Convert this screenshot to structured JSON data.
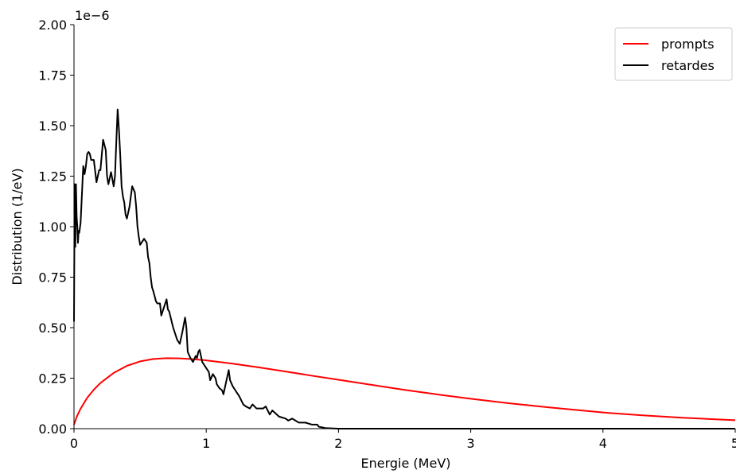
{
  "chart_data": {
    "type": "line",
    "xlabel": "Energie (MeV)",
    "ylabel": "Distribution (1/eV)",
    "y_offset_label": "1e−6",
    "xlim": [
      0,
      5
    ],
    "ylim": [
      0,
      2.0
    ],
    "x_ticks": [
      0,
      1,
      2,
      3,
      4,
      5
    ],
    "x_tick_labels": [
      "0",
      "1",
      "2",
      "3",
      "4",
      "5"
    ],
    "y_ticks": [
      0,
      0.25,
      0.5,
      0.75,
      1.0,
      1.25,
      1.5,
      1.75,
      2.0
    ],
    "y_tick_labels": [
      "0.00",
      "0.25",
      "0.50",
      "0.75",
      "1.00",
      "1.25",
      "1.50",
      "1.75",
      "2.00"
    ],
    "grid": false,
    "legend": "top-right",
    "series": [
      {
        "name": "prompts",
        "color": "#ff0000",
        "x": [
          0,
          0.02,
          0.05,
          0.1,
          0.15,
          0.2,
          0.3,
          0.4,
          0.5,
          0.6,
          0.7,
          0.8,
          0.9,
          1.0,
          1.2,
          1.4,
          1.6,
          1.8,
          2.0,
          2.2,
          2.5,
          2.8,
          3.0,
          3.3,
          3.6,
          4.0,
          4.3,
          4.6,
          5.0
        ],
        "y": [
          0.02,
          0.058,
          0.099,
          0.153,
          0.193,
          0.226,
          0.276,
          0.311,
          0.333,
          0.345,
          0.349,
          0.348,
          0.344,
          0.338,
          0.322,
          0.303,
          0.283,
          0.262,
          0.242,
          0.222,
          0.192,
          0.165,
          0.148,
          0.125,
          0.105,
          0.08,
          0.066,
          0.054,
          0.042
        ]
      },
      {
        "name": "retardes",
        "color": "#000000",
        "x": [
          0.0,
          0.005,
          0.01,
          0.015,
          0.02,
          0.025,
          0.03,
          0.035,
          0.04,
          0.05,
          0.06,
          0.07,
          0.08,
          0.09,
          0.1,
          0.11,
          0.12,
          0.13,
          0.14,
          0.15,
          0.17,
          0.19,
          0.2,
          0.22,
          0.24,
          0.25,
          0.26,
          0.28,
          0.3,
          0.31,
          0.32,
          0.33,
          0.34,
          0.35,
          0.36,
          0.37,
          0.38,
          0.39,
          0.4,
          0.42,
          0.44,
          0.46,
          0.47,
          0.48,
          0.49,
          0.5,
          0.52,
          0.53,
          0.55,
          0.56,
          0.57,
          0.58,
          0.59,
          0.6,
          0.62,
          0.63,
          0.65,
          0.66,
          0.68,
          0.7,
          0.71,
          0.72,
          0.75,
          0.78,
          0.8,
          0.82,
          0.84,
          0.85,
          0.86,
          0.88,
          0.9,
          0.92,
          0.93,
          0.94,
          0.95,
          0.97,
          1.0,
          1.02,
          1.03,
          1.05,
          1.07,
          1.08,
          1.1,
          1.12,
          1.13,
          1.15,
          1.17,
          1.18,
          1.2,
          1.22,
          1.25,
          1.28,
          1.3,
          1.33,
          1.35,
          1.38,
          1.4,
          1.43,
          1.45,
          1.48,
          1.5,
          1.55,
          1.6,
          1.62,
          1.65,
          1.7,
          1.75,
          1.8,
          1.82,
          1.84,
          1.85,
          1.9,
          2.0,
          3.0,
          5.0
        ],
        "y": [
          0.53,
          1.21,
          0.9,
          1.21,
          1.05,
          1.0,
          0.92,
          0.98,
          0.97,
          1.02,
          1.16,
          1.3,
          1.26,
          1.3,
          1.36,
          1.37,
          1.36,
          1.33,
          1.33,
          1.33,
          1.22,
          1.28,
          1.28,
          1.43,
          1.38,
          1.25,
          1.21,
          1.27,
          1.2,
          1.25,
          1.42,
          1.58,
          1.48,
          1.35,
          1.2,
          1.15,
          1.12,
          1.06,
          1.04,
          1.1,
          1.2,
          1.17,
          1.1,
          1.0,
          0.95,
          0.91,
          0.93,
          0.94,
          0.92,
          0.85,
          0.82,
          0.75,
          0.7,
          0.68,
          0.63,
          0.62,
          0.62,
          0.56,
          0.6,
          0.64,
          0.59,
          0.58,
          0.5,
          0.44,
          0.42,
          0.48,
          0.55,
          0.5,
          0.38,
          0.35,
          0.33,
          0.36,
          0.35,
          0.38,
          0.39,
          0.33,
          0.3,
          0.28,
          0.24,
          0.27,
          0.25,
          0.22,
          0.2,
          0.19,
          0.17,
          0.23,
          0.29,
          0.24,
          0.21,
          0.19,
          0.16,
          0.12,
          0.11,
          0.1,
          0.12,
          0.1,
          0.1,
          0.1,
          0.11,
          0.07,
          0.09,
          0.06,
          0.05,
          0.04,
          0.05,
          0.03,
          0.03,
          0.02,
          0.02,
          0.02,
          0.01,
          0.003,
          0.0,
          0.0,
          0.0
        ]
      }
    ]
  }
}
